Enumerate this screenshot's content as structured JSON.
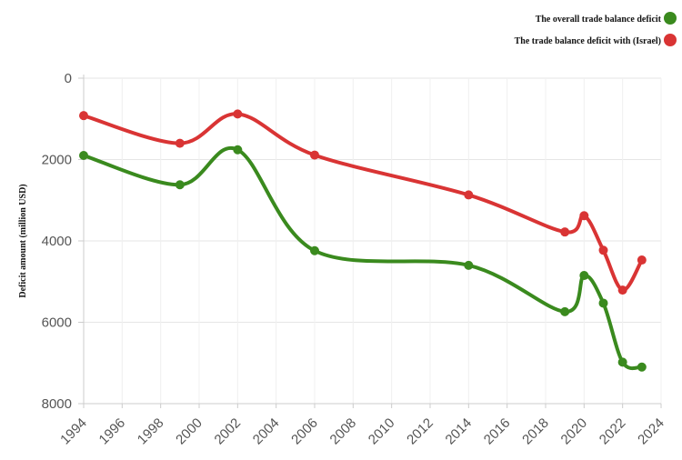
{
  "chart_data": {
    "type": "line",
    "title": "",
    "xlabel": "",
    "ylabel": "Deficit amount (million USD)",
    "xlim": [
      1994,
      2024
    ],
    "ylim": [
      0,
      8000
    ],
    "y_inverted": true,
    "grid": true,
    "legend_position": "top-right",
    "x_ticks": [
      "1994",
      "1996",
      "1998",
      "2000",
      "2002",
      "2004",
      "2006",
      "2008",
      "2010",
      "2012",
      "2014",
      "2016",
      "2018",
      "2020",
      "2022",
      "2024"
    ],
    "y_ticks": [
      "0",
      "2000",
      "4000",
      "6000",
      "8000"
    ],
    "x": [
      1994,
      1999,
      2002,
      2006,
      2014,
      2019,
      2020,
      2021,
      2022,
      2023
    ],
    "series": [
      {
        "name": "The overall trade balance deficit",
        "color": "#3a8a1e",
        "values": [
          1900,
          2620,
          1760,
          4240,
          4600,
          5740,
          4850,
          5530,
          6980,
          7100
        ]
      },
      {
        "name": "The trade balance deficit with (Israel)",
        "color": "#d93434",
        "values": [
          920,
          1600,
          880,
          1890,
          2870,
          3780,
          3380,
          4230,
          5210,
          4470
        ]
      }
    ]
  }
}
